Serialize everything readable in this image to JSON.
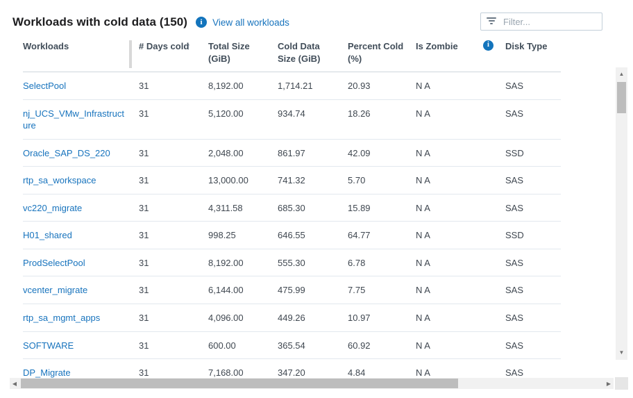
{
  "header": {
    "title": "Workloads with cold data (150)",
    "view_all_link": "View all workloads",
    "filter_placeholder": "Filter...",
    "info_icon_glyph": "i"
  },
  "table": {
    "columns": [
      {
        "label": "Workloads"
      },
      {
        "label": "# Days cold",
        "sorted": true,
        "sort_direction": "asc",
        "sort_glyph": "↑"
      },
      {
        "label": "Total Size (GiB)"
      },
      {
        "label": "Cold Data Size (GiB)"
      },
      {
        "label": "Percent Cold (%)"
      },
      {
        "label": "Is Zombie",
        "has_info_icon": true,
        "info_icon_glyph": "i"
      },
      {
        "label": "Disk Type"
      }
    ],
    "rows": [
      [
        "SelectPool",
        "31",
        "8,192.00",
        "1,714.21",
        "20.93",
        "N A",
        "SAS"
      ],
      [
        "nj_UCS_VMw_Infrastructure",
        "31",
        "5,120.00",
        "934.74",
        "18.26",
        "N A",
        "SAS"
      ],
      [
        "Oracle_SAP_DS_220",
        "31",
        "2,048.00",
        "861.97",
        "42.09",
        "N A",
        "SSD"
      ],
      [
        "rtp_sa_workspace",
        "31",
        "13,000.00",
        "741.32",
        "5.70",
        "N A",
        "SAS"
      ],
      [
        "vc220_migrate",
        "31",
        "4,311.58",
        "685.30",
        "15.89",
        "N A",
        "SAS"
      ],
      [
        "H01_shared",
        "31",
        "998.25",
        "646.55",
        "64.77",
        "N A",
        "SSD"
      ],
      [
        "ProdSelectPool",
        "31",
        "8,192.00",
        "555.30",
        "6.78",
        "N A",
        "SAS"
      ],
      [
        "vcenter_migrate",
        "31",
        "6,144.00",
        "475.99",
        "7.75",
        "N A",
        "SAS"
      ],
      [
        "rtp_sa_mgmt_apps",
        "31",
        "4,096.00",
        "449.26",
        "10.97",
        "N A",
        "SAS"
      ],
      [
        "SOFTWARE",
        "31",
        "600.00",
        "365.54",
        "60.92",
        "N A",
        "SAS"
      ],
      [
        "DP_Migrate",
        "31",
        "7,168.00",
        "347.20",
        "4.84",
        "N A",
        "SAS"
      ]
    ]
  },
  "scrollbars": {
    "vertical": {
      "up_glyph": "▲",
      "down_glyph": "▼"
    },
    "horizontal": {
      "left_glyph": "◀",
      "right_glyph": "▶"
    }
  },
  "colors": {
    "accent_blue": "#1374bc",
    "link_blue": "#1773bd",
    "title_text": "#1d1d1f",
    "header_text": "#414d59",
    "body_text": "#3f4750",
    "row_border": "#e2e8ee",
    "scroll_thumb": "#bdbdbd",
    "scroll_track": "#f1f1f1"
  }
}
